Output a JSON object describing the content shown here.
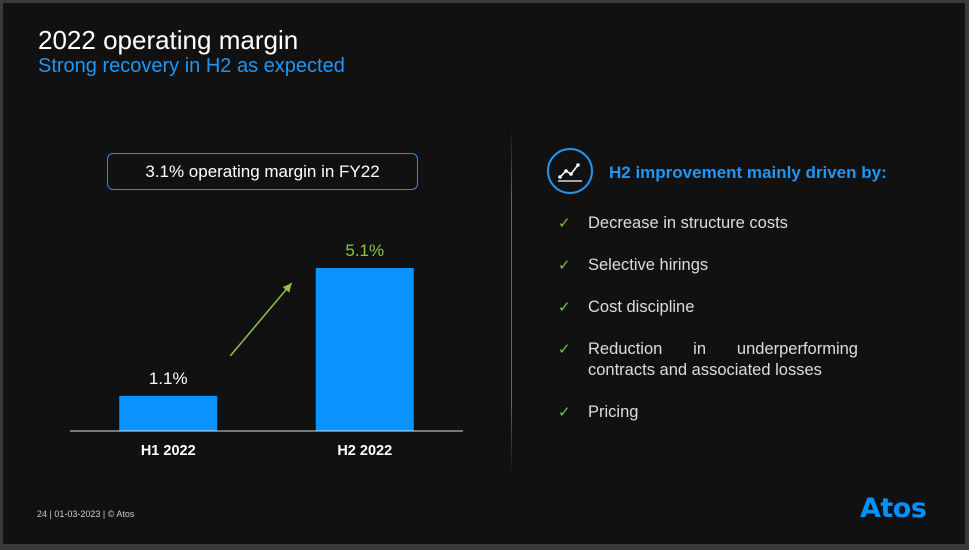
{
  "header": {
    "title": "2022 operating margin",
    "subtitle": "Strong recovery in H2 as expected"
  },
  "kpi": {
    "text": "3.1% operating margin in FY22"
  },
  "chart_data": {
    "type": "bar",
    "categories": [
      "H1 2022",
      "H2 2022"
    ],
    "values": [
      1.1,
      5.1
    ],
    "labels": [
      "1.1%",
      "5.1%"
    ],
    "title": "",
    "xlabel": "",
    "ylabel": "",
    "ylim": [
      0,
      5.1
    ],
    "bar_color": "#0a93ff",
    "highlight_label_color": "#8bc34a",
    "arrow_color": "#8bc34a"
  },
  "right_panel": {
    "icon": "line-chart-icon",
    "heading": "H2 improvement mainly driven by:",
    "bullets": [
      "Decrease in structure costs",
      "Selective hirings",
      "Cost discipline",
      "Reduction in underperforming contracts and associated losses",
      "Pricing"
    ]
  },
  "footer": {
    "text": "24  | 01-03-2023 | © Atos"
  },
  "logo": {
    "text": "Atos"
  },
  "colors": {
    "accent": "#2196f3",
    "background": "#111111",
    "check": "#7cc04a"
  }
}
